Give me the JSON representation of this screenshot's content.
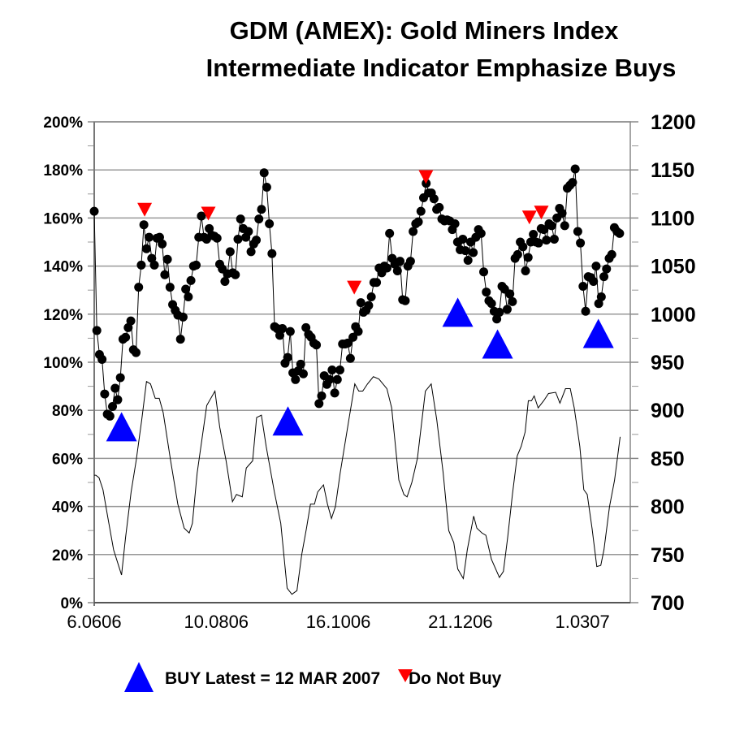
{
  "chart_data": {
    "type": "line",
    "title": "GDM (AMEX): Gold Miners Index",
    "subtitle": "Intermediate Indicator Emphasize Buys",
    "left_axis": {
      "min": 0,
      "max": 200,
      "step": 20,
      "tick_labels": [
        "0%",
        "20%",
        "40%",
        "60%",
        "80%",
        "100%",
        "120%",
        "140%",
        "160%",
        "180%",
        "200%"
      ]
    },
    "right_axis": {
      "min": 700,
      "max": 1200,
      "step": 50,
      "tick_labels": [
        "700",
        "750",
        "800",
        "850",
        "900",
        "950",
        "1000",
        "1050",
        "1100",
        "1150",
        "1200"
      ]
    },
    "x_axis": {
      "unit": "trading day index",
      "xlim": [
        0,
        200
      ],
      "ticks": [
        {
          "x": 0,
          "label": "6.0606"
        },
        {
          "x": 46,
          "label": "10.0806"
        },
        {
          "x": 92,
          "label": "16.1006"
        },
        {
          "x": 138,
          "label": "21.1206"
        },
        {
          "x": 184,
          "label": "1.0307"
        }
      ]
    },
    "grid": true,
    "price_series": {
      "axis": "right",
      "marker": "circle",
      "color": "#000000",
      "x_range": [
        0,
        198
      ],
      "values": [
        1107,
        983,
        958,
        953,
        917,
        896,
        894,
        904,
        923,
        911,
        934,
        974,
        976,
        986,
        993,
        963,
        960,
        1028,
        1051,
        1093,
        1068,
        1080,
        1058,
        1051,
        1079,
        1080,
        1073,
        1041,
        1057,
        1028,
        1010,
        1004,
        999,
        974,
        997,
        1026,
        1018,
        1035,
        1050,
        1051,
        1080,
        1102,
        1080,
        1078,
        1089,
        1082,
        1081,
        1079,
        1052,
        1047,
        1034,
        1042,
        1065,
        1043,
        1041,
        1078,
        1099,
        1089,
        1080,
        1086,
        1065,
        1073,
        1077,
        1099,
        1109,
        1147,
        1132,
        1094,
        1063,
        987,
        985,
        978,
        985,
        949,
        955,
        982,
        939,
        932,
        941,
        948,
        938,
        986,
        979,
        976,
        970,
        968,
        907,
        915,
        936,
        927,
        932,
        942,
        918,
        932,
        942,
        969,
        969,
        970,
        954,
        976,
        987,
        982,
        1012,
        1002,
        1004,
        1009,
        1018,
        1033,
        1033,
        1048,
        1043,
        1050,
        1048,
        1084,
        1058,
        1052,
        1045,
        1055,
        1015,
        1014,
        1050,
        1055,
        1086,
        1094,
        1096,
        1107,
        1121,
        1136,
        1126,
        1126,
        1120,
        1109,
        1111,
        1099,
        1097,
        1098,
        1097,
        1088,
        1094,
        1075,
        1067,
        1078,
        1066,
        1056,
        1075,
        1064,
        1080,
        1088,
        1084,
        1044,
        1023,
        1014,
        1011,
        1003,
        995,
        1002,
        1029,
        1026,
        1005,
        1021,
        1013,
        1058,
        1062,
        1075,
        1070,
        1045,
        1059,
        1075,
        1083,
        1075,
        1074,
        1089,
        1088,
        1077,
        1094,
        1092,
        1078,
        1100,
        1110,
        1105,
        1092,
        1131,
        1134,
        1137,
        1151,
        1086,
        1074,
        1029,
        1003,
        1039,
        1038,
        1034,
        1050,
        1011,
        1018,
        1039,
        1047,
        1058,
        1062,
        1090,
        1086,
        1084
      ]
    },
    "indicator_series": {
      "axis": "left",
      "color": "#000000",
      "x": [
        0,
        0.6,
        1.8,
        3.3,
        5.2,
        7.3,
        10.3,
        11.8,
        13.9,
        15.8,
        17.9,
        19.7,
        21.2,
        23,
        24.5,
        26,
        28.8,
        31.5,
        33.9,
        35.8,
        37,
        38.8,
        42.4,
        45.5,
        47.3,
        49.7,
        52.1,
        53.6,
        55.8,
        57.3,
        59.7,
        61.2,
        63,
        64.8,
        67.9,
        70.3,
        72.7,
        74.5,
        76.4,
        78.2,
        80,
        81.5,
        83,
        84.2,
        86.4,
        87.9,
        89.4,
        90.9,
        92.7,
        96.1,
        98.2,
        99.7,
        101.2,
        103,
        105.2,
        107.3,
        110.3,
        112.1,
        114.8,
        116.7,
        117.9,
        119.7,
        121.8,
        124.8,
        127,
        129.1,
        131.5,
        133.6,
        135.5,
        137,
        139.1,
        140.6,
        143,
        144.2,
        146.1,
        147.6,
        149.7,
        152.7,
        154.2,
        155.8,
        157.6,
        159.4,
        160.9,
        162.4,
        163.6,
        164.8,
        165.8,
        167.3,
        169.4,
        171.2,
        173.9,
        175.5,
        177.6,
        179.4,
        180.9,
        183,
        184.5,
        185.8,
        187.6,
        189.4,
        190.9,
        192.1,
        194.2,
        196.1,
        198.2
      ],
      "y": [
        53,
        53,
        52,
        47,
        35,
        22,
        11.5,
        27,
        46,
        59,
        76,
        92,
        91,
        85,
        85,
        79,
        59,
        41,
        31,
        29,
        33,
        54,
        82,
        88,
        73,
        59,
        42,
        45,
        44,
        56,
        59,
        77,
        78,
        65,
        46,
        33,
        6,
        3.5,
        5,
        20,
        31,
        41,
        41,
        46,
        49,
        41,
        35,
        40,
        54,
        77,
        91,
        88,
        88,
        91,
        94,
        93,
        89,
        81,
        51,
        45,
        44,
        50,
        60,
        88,
        91,
        76,
        54,
        30,
        25,
        14,
        10,
        22,
        36,
        31,
        29,
        28,
        18,
        10.5,
        13,
        27,
        45,
        61,
        65,
        71,
        84,
        84,
        86,
        81,
        84,
        87,
        87.5,
        83,
        89,
        89,
        81,
        65,
        47,
        45,
        31,
        15,
        15.5,
        22,
        40,
        51,
        69
      ]
    },
    "buy_signals": {
      "color": "#0000ff",
      "points": [
        {
          "x": 10.3,
          "y": 883
        },
        {
          "x": 73,
          "y": 889
        },
        {
          "x": 137,
          "y": 1002
        },
        {
          "x": 152,
          "y": 969
        },
        {
          "x": 190,
          "y": 980
        }
      ]
    },
    "do_not_buy_signals": {
      "color": "#ff0000",
      "points": [
        {
          "x": 19,
          "y": 1109
        },
        {
          "x": 43,
          "y": 1105
        },
        {
          "x": 98,
          "y": 1028
        },
        {
          "x": 125,
          "y": 1143
        },
        {
          "x": 164,
          "y": 1101
        },
        {
          "x": 168.5,
          "y": 1106
        }
      ]
    },
    "legend": {
      "placement": "bottom",
      "buy_label": "BUY Latest = 12 MAR 2007",
      "do_not_buy_label": "Do Not Buy"
    }
  }
}
